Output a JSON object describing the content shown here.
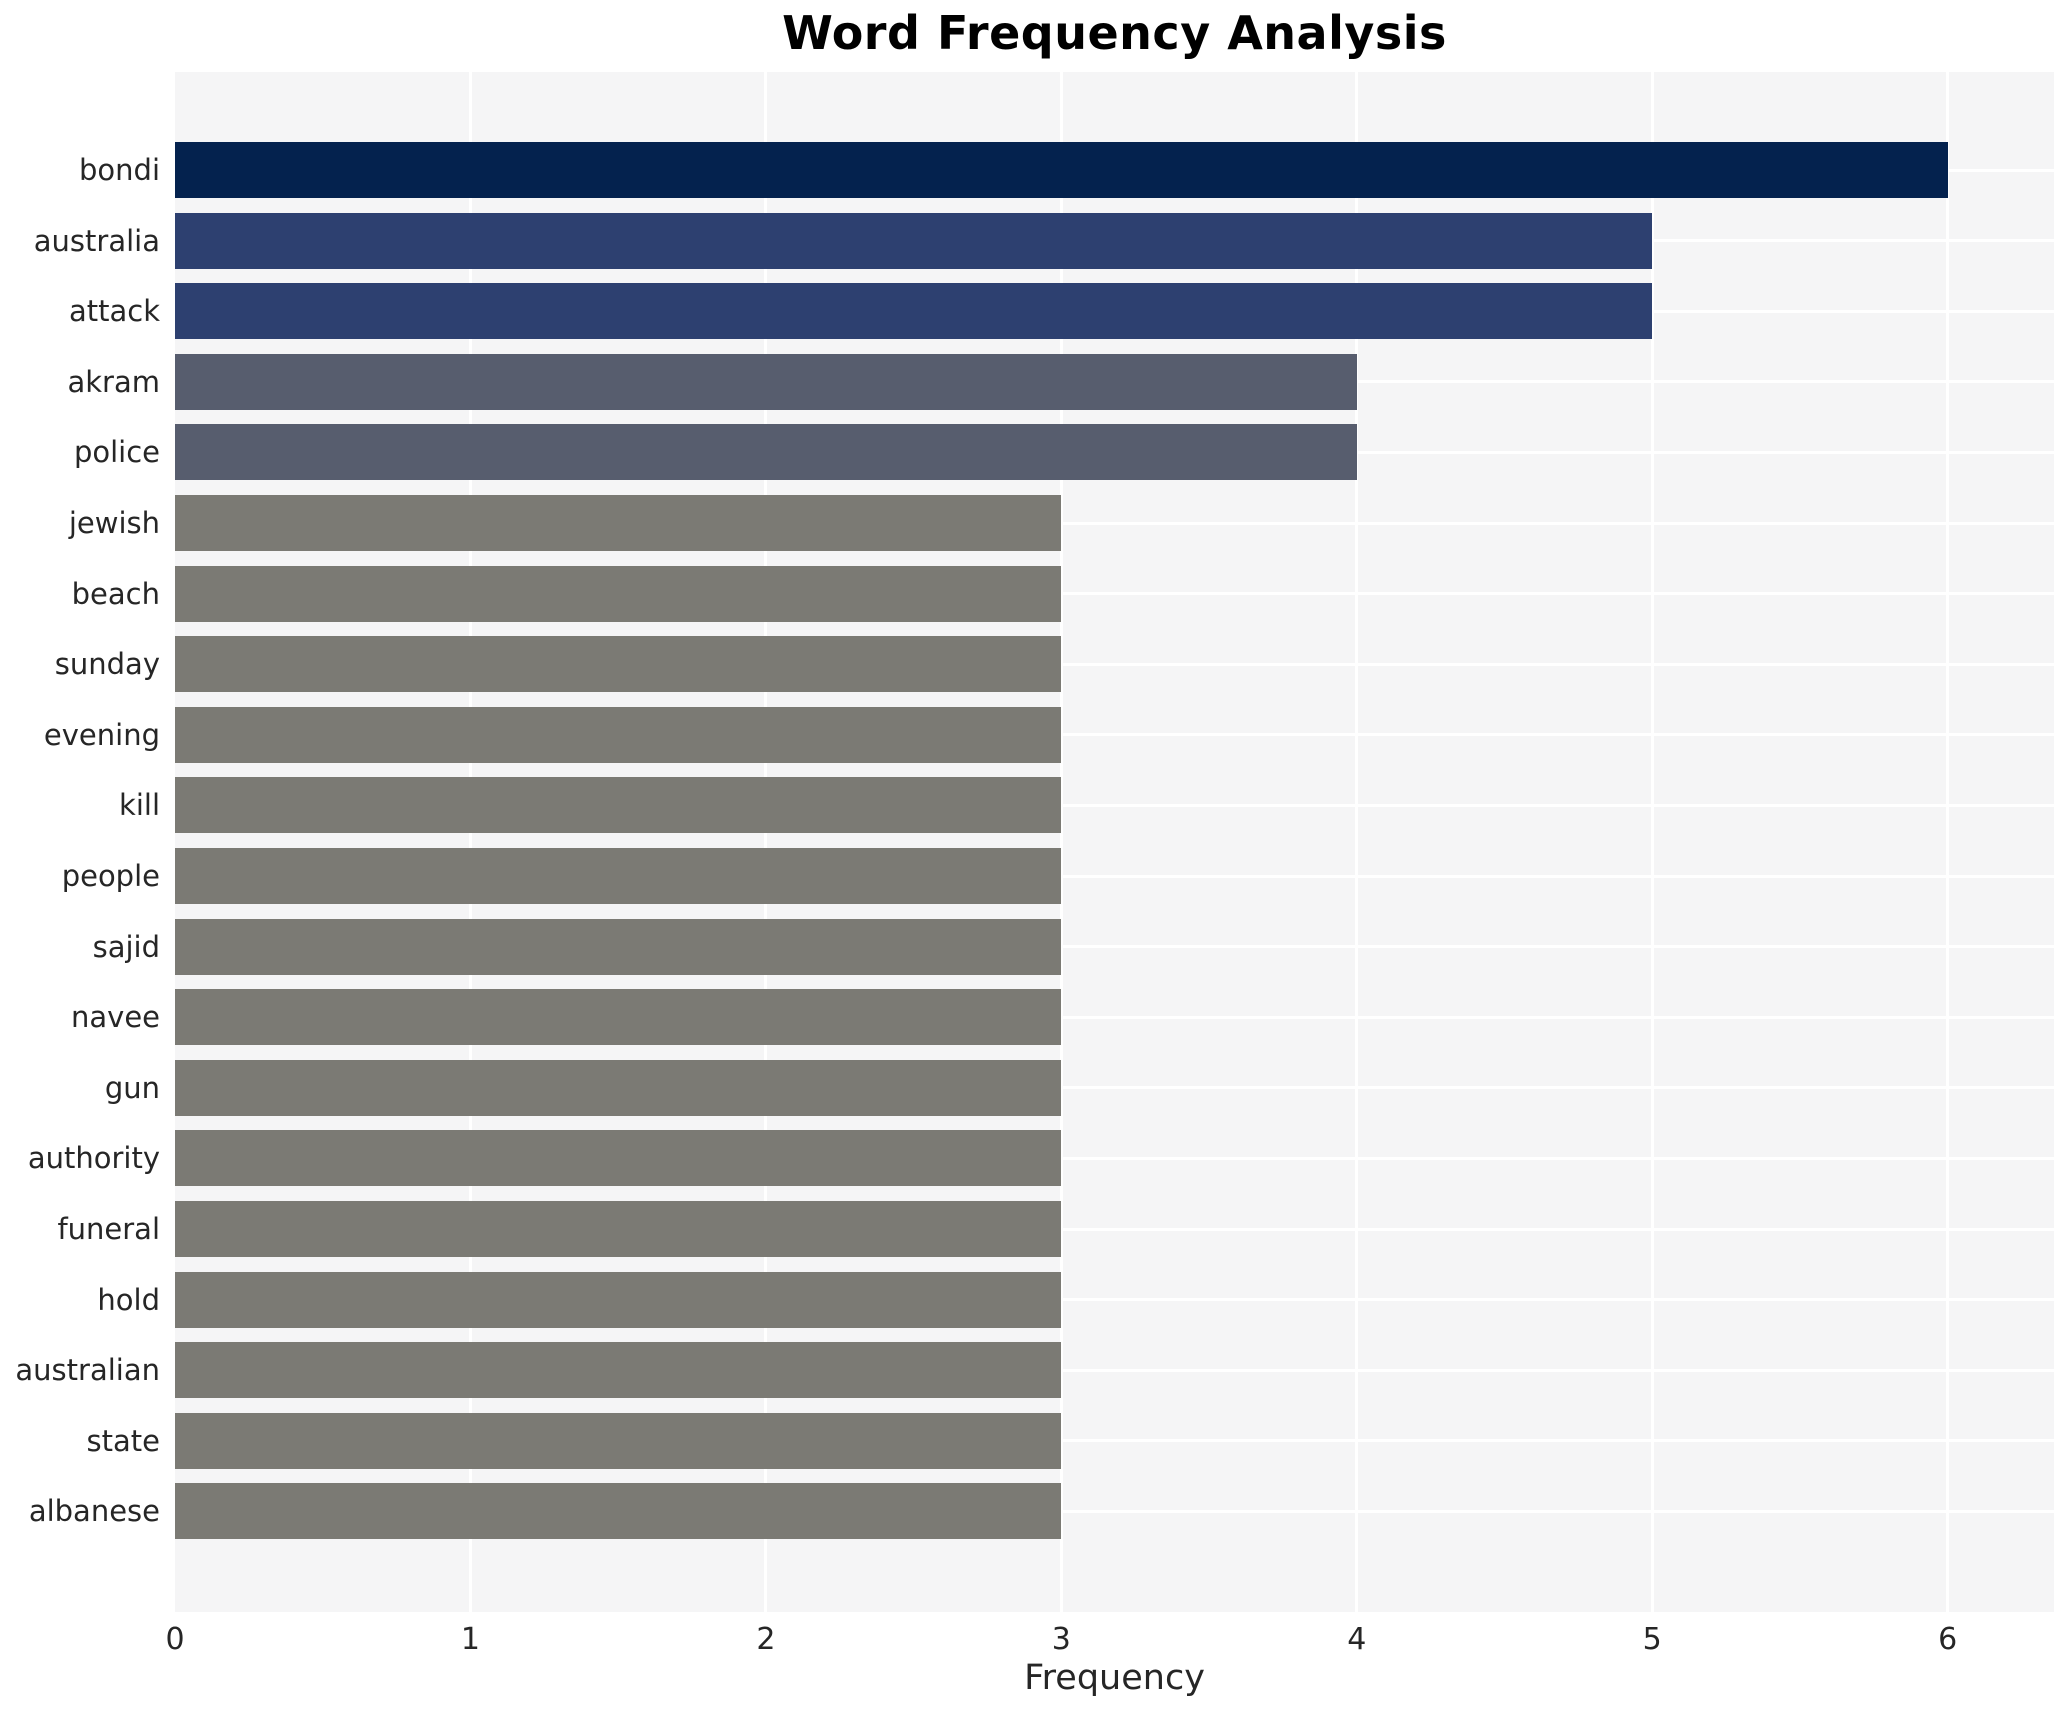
{
  "chart_data": {
    "type": "bar",
    "orientation": "horizontal",
    "title": "Word Frequency Analysis",
    "xlabel": "Frequency",
    "ylabel": "",
    "categories": [
      "bondi",
      "australia",
      "attack",
      "akram",
      "police",
      "jewish",
      "beach",
      "sunday",
      "evening",
      "kill",
      "people",
      "sajid",
      "navee",
      "gun",
      "authority",
      "funeral",
      "hold",
      "australian",
      "state",
      "albanese"
    ],
    "values": [
      6,
      5,
      5,
      4,
      4,
      3,
      3,
      3,
      3,
      3,
      3,
      3,
      3,
      3,
      3,
      3,
      3,
      3,
      3,
      3
    ],
    "bar_colors": [
      "#04224e",
      "#2d4070",
      "#2d4070",
      "#575d6e",
      "#575d6e",
      "#7b7a74",
      "#7b7a74",
      "#7b7a74",
      "#7b7a74",
      "#7b7a74",
      "#7b7a74",
      "#7b7a74",
      "#7b7a74",
      "#7b7a74",
      "#7b7a74",
      "#7b7a74",
      "#7b7a74",
      "#7b7a74",
      "#7b7a74",
      "#7b7a74"
    ],
    "xticks": [
      0,
      1,
      2,
      3,
      4,
      5,
      6
    ],
    "xlim": [
      0,
      6.36
    ],
    "grid": true,
    "legend_position": "none",
    "style": {
      "plot_background": "#f5f5f6",
      "grid_color": "#ffffff",
      "tick_label_color": "#262626",
      "title_color": "#000000",
      "outer_background": "#ffffff"
    }
  }
}
